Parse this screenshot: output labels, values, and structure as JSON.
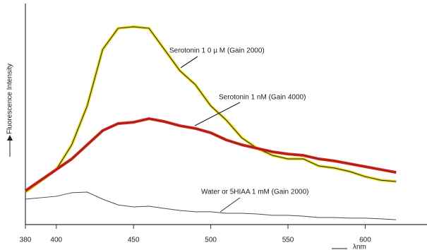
{
  "chart_data": {
    "type": "line",
    "y_label": "Fluorescence Intensity",
    "x_label": "λnm",
    "x": [
      380,
      400,
      410,
      420,
      430,
      440,
      450,
      460,
      470,
      480,
      490,
      500,
      510,
      520,
      530,
      540,
      550,
      560,
      570,
      580,
      590,
      600,
      610,
      620
    ],
    "series": [
      {
        "name": "Serotonin 1 0 µ M (Gain 2000)",
        "color": "#e6dc1e",
        "values": [
          14.7,
          24.9,
          36.1,
          53.7,
          79.2,
          88.8,
          89.5,
          88.8,
          79.2,
          69.6,
          63.3,
          53.7,
          47.3,
          39.3,
          34.5,
          31.3,
          29.7,
          29.7,
          26.5,
          25.6,
          24.0,
          21.7,
          20.1,
          19.5
        ]
      },
      {
        "name": "Serotonin 1 nM (Gain 4000)",
        "color": "#d42a1e",
        "values": [
          15.3,
          24.9,
          29.7,
          36.1,
          42.5,
          45.7,
          46.3,
          47.9,
          46.6,
          44.7,
          43.5,
          41.5,
          38.3,
          36.1,
          34.5,
          32.9,
          31.9,
          31.3,
          29.7,
          28.8,
          27.5,
          26.2,
          24.9,
          23.6
        ]
      },
      {
        "name": "Water or 5HIAA 1 mM (Gain 2000)",
        "color": "#4a4a55",
        "values": [
          11.5,
          12.8,
          14.4,
          14.7,
          11.5,
          8.9,
          8.0,
          8.3,
          7.3,
          6.4,
          5.8,
          5.8,
          5.1,
          5.1,
          4.8,
          4.2,
          4.2,
          3.8,
          3.2,
          3.2,
          2.9,
          2.9,
          2.6,
          2.2
        ]
      }
    ],
    "xlim": [
      380,
      640
    ],
    "xticks": [
      380,
      400,
      450,
      500,
      550,
      600
    ],
    "ylim": [
      0,
      100
    ]
  }
}
